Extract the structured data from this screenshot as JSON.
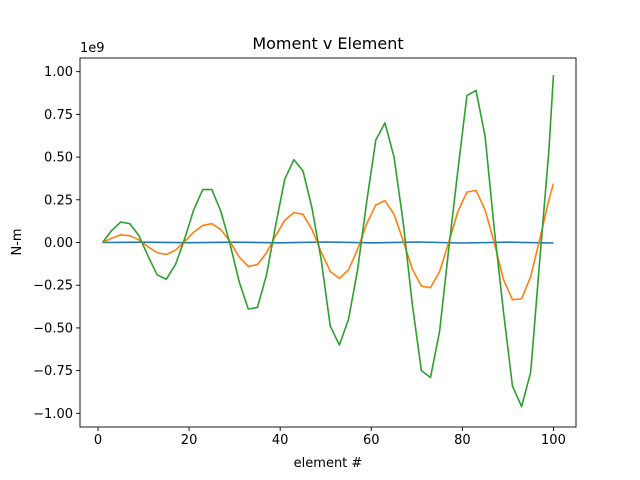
{
  "chart_data": {
    "type": "line",
    "title": "Moment v Element",
    "xlabel": "element #",
    "ylabel": "N-m",
    "y_offset_label": "1e9",
    "xlim": [
      -3.95,
      104.95
    ],
    "ylim": [
      -1.08,
      1.08
    ],
    "x_ticks": [
      0,
      20,
      40,
      60,
      80,
      100
    ],
    "x_tick_labels": [
      "0",
      "20",
      "40",
      "60",
      "80",
      "100"
    ],
    "y_ticks": [
      -1.0,
      -0.75,
      -0.5,
      -0.25,
      0.0,
      0.25,
      0.5,
      0.75,
      1.0
    ],
    "y_tick_labels": [
      "−1.00",
      "−0.75",
      "−0.50",
      "−0.25",
      "0.00",
      "0.25",
      "0.50",
      "0.75",
      "1.00"
    ],
    "grid": false,
    "legend": "none",
    "series": [
      {
        "color": "#1f77b4",
        "x": [
          1,
          10,
          20,
          30,
          40,
          50,
          60,
          70,
          80,
          90,
          100
        ],
        "y": [
          0.0,
          0.002,
          -0.001,
          0.002,
          -0.002,
          0.003,
          -0.002,
          0.003,
          -0.003,
          0.002,
          -0.003
        ]
      },
      {
        "color": "#ff7f0e",
        "x": [
          1,
          3,
          5,
          7,
          9,
          11,
          13,
          15,
          17,
          19,
          21,
          23,
          25,
          27,
          29,
          31,
          33,
          35,
          37,
          39,
          41,
          43,
          45,
          47,
          49,
          51,
          53,
          55,
          57,
          59,
          61,
          63,
          65,
          67,
          69,
          71,
          73,
          75,
          77,
          79,
          81,
          83,
          85,
          87,
          89,
          91,
          93,
          95,
          97,
          99,
          100
        ],
        "y": [
          0.0,
          0.025,
          0.045,
          0.04,
          0.015,
          -0.025,
          -0.06,
          -0.07,
          -0.045,
          0.005,
          0.06,
          0.1,
          0.11,
          0.075,
          0.005,
          -0.085,
          -0.14,
          -0.13,
          -0.06,
          0.04,
          0.13,
          0.175,
          0.165,
          0.075,
          -0.055,
          -0.17,
          -0.21,
          -0.16,
          -0.04,
          0.11,
          0.22,
          0.245,
          0.165,
          0.01,
          -0.155,
          -0.255,
          -0.265,
          -0.17,
          0.0,
          0.18,
          0.295,
          0.305,
          0.19,
          0.0,
          -0.215,
          -0.335,
          -0.33,
          -0.2,
          0.02,
          0.25,
          0.345
        ]
      },
      {
        "color": "#2ca02c",
        "x": [
          1,
          3,
          5,
          7,
          9,
          11,
          13,
          15,
          17,
          19,
          21,
          23,
          25,
          27,
          29,
          31,
          33,
          35,
          37,
          39,
          41,
          43,
          45,
          47,
          49,
          51,
          53,
          55,
          57,
          59,
          61,
          63,
          65,
          67,
          69,
          71,
          73,
          75,
          77,
          79,
          81,
          83,
          85,
          87,
          89,
          91,
          93,
          95,
          97,
          99,
          100
        ],
        "y": [
          0.0,
          0.07,
          0.12,
          0.11,
          0.04,
          -0.08,
          -0.19,
          -0.215,
          -0.13,
          0.02,
          0.19,
          0.31,
          0.31,
          0.18,
          -0.01,
          -0.23,
          -0.39,
          -0.38,
          -0.19,
          0.1,
          0.37,
          0.485,
          0.42,
          0.2,
          -0.1,
          -0.49,
          -0.6,
          -0.45,
          -0.16,
          0.24,
          0.6,
          0.7,
          0.5,
          0.12,
          -0.36,
          -0.75,
          -0.79,
          -0.52,
          -0.04,
          0.42,
          0.86,
          0.89,
          0.62,
          0.08,
          -0.4,
          -0.84,
          -0.96,
          -0.76,
          -0.1,
          0.54,
          0.98
        ]
      }
    ]
  }
}
